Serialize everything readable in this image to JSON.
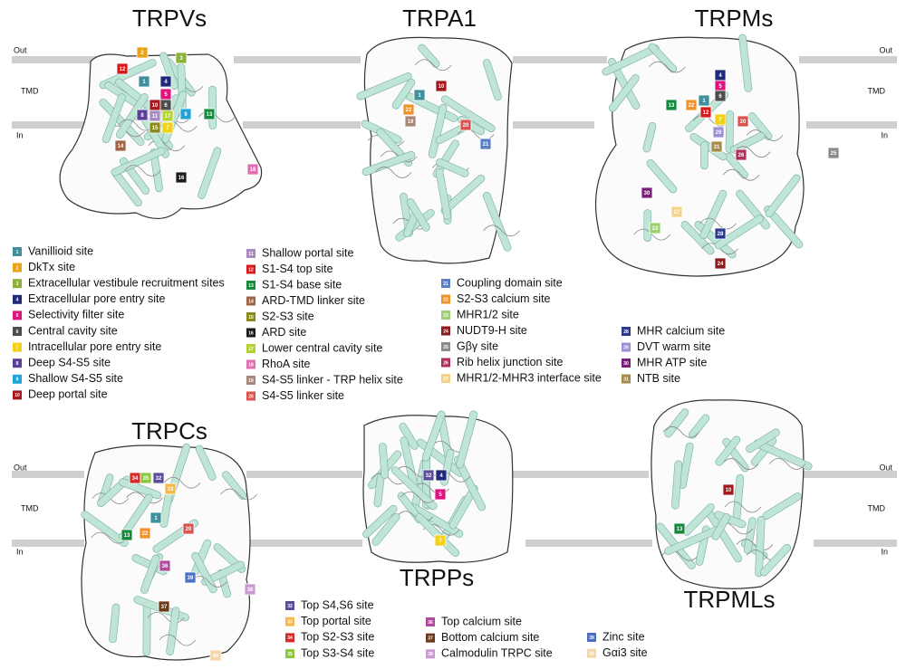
{
  "membrane_labels": [
    {
      "out": "Out",
      "tmd": "TMD",
      "in": "In"
    },
    {
      "out": "Out",
      "tmd": "TMD",
      "in": "In"
    },
    {
      "out": "Out",
      "tmd": "TMD",
      "in": "In"
    },
    {
      "out": "Out",
      "tmd": "TMD",
      "in": "In"
    }
  ],
  "panels": [
    {
      "title": "TRPVs",
      "sites": [
        "2",
        "3",
        "12",
        "1",
        "4",
        "5",
        "8",
        "10",
        "6",
        "11",
        "17",
        "9",
        "13",
        "15",
        "7",
        "14",
        "16",
        "18"
      ]
    },
    {
      "title": "TRPA1",
      "sites": [
        "1",
        "10",
        "22",
        "19",
        "20",
        "21"
      ]
    },
    {
      "title": "TRPMs",
      "sites": [
        "4",
        "5",
        "6",
        "1",
        "13",
        "22",
        "12",
        "7",
        "20",
        "29",
        "31",
        "26",
        "25",
        "30",
        "27",
        "23",
        "28",
        "24"
      ]
    },
    {
      "title": "TRPCs",
      "sites": [
        "34",
        "35",
        "32",
        "33",
        "1",
        "20",
        "13",
        "22",
        "36",
        "39",
        "38",
        "37",
        "40"
      ]
    },
    {
      "title": "TRPPs",
      "sites": [
        "32",
        "4",
        "5",
        "7"
      ]
    },
    {
      "title": "TRPMLs",
      "sites": [
        "10",
        "13"
      ]
    }
  ],
  "legend": [
    {
      "number": "1",
      "label": "Vanillioid site",
      "color": "#3f8f9c"
    },
    {
      "number": "2",
      "label": "DkTx site",
      "color": "#e8a317"
    },
    {
      "number": "3",
      "label": "Extracellular vestibule recruitment sites",
      "color": "#8db23c"
    },
    {
      "number": "4",
      "label": "Extracellular pore entry site",
      "color": "#1f2a7a"
    },
    {
      "number": "5",
      "label": "Selectivity filter site",
      "color": "#e0127f"
    },
    {
      "number": "6",
      "label": "Central cavity site",
      "color": "#4d4d4d"
    },
    {
      "number": "7",
      "label": "Intracellular pore entry site",
      "color": "#f2d116"
    },
    {
      "number": "8",
      "label": "Deep S4-S5 site",
      "color": "#5a3f9b"
    },
    {
      "number": "9",
      "label": "Shallow S4-S5 site",
      "color": "#1fa3d8"
    },
    {
      "number": "10",
      "label": "Deep portal site",
      "color": "#a3191d"
    },
    {
      "number": "11",
      "label": "Shallow portal site",
      "color": "#a98bc2"
    },
    {
      "number": "12",
      "label": "S1-S4 top site",
      "color": "#d7191c"
    },
    {
      "number": "13",
      "label": "S1-S4 base site",
      "color": "#168a3e"
    },
    {
      "number": "14",
      "label": "ARD-TMD linker site",
      "color": "#a0634a"
    },
    {
      "number": "15",
      "label": "S2-S3 site",
      "color": "#8a8a1a"
    },
    {
      "number": "16",
      "label": "ARD site",
      "color": "#1a1a1a"
    },
    {
      "number": "17",
      "label": "Lower central cavity site",
      "color": "#b3d334"
    },
    {
      "number": "18",
      "label": "RhoA site",
      "color": "#e06fb1"
    },
    {
      "number": "19",
      "label": "S4-S5 linker - TRP helix site",
      "color": "#a8877b"
    },
    {
      "number": "20",
      "label": "S4-S5 linker site",
      "color": "#d9534f"
    },
    {
      "number": "21",
      "label": "Coupling domain site",
      "color": "#5b7fc4"
    },
    {
      "number": "22",
      "label": "S2-S3 calcium site",
      "color": "#f0922b"
    },
    {
      "number": "23",
      "label": "MHR1/2 site",
      "color": "#9ccf6d"
    },
    {
      "number": "24",
      "label": "NUDT9-H site",
      "color": "#8b1a1a"
    },
    {
      "number": "25",
      "label": "Gβγ site",
      "color": "#8a8a8a"
    },
    {
      "number": "26",
      "label": "Rib helix junction site",
      "color": "#b0305a"
    },
    {
      "number": "27",
      "label": "MHR1/2-MHR3 interface site",
      "color": "#f5d28a"
    },
    {
      "number": "28",
      "label": "MHR calcium site",
      "color": "#2b3a8c"
    },
    {
      "number": "29",
      "label": "DVT warm site",
      "color": "#9b8fd6"
    },
    {
      "number": "30",
      "label": "MHR ATP site",
      "color": "#7a1f7a"
    },
    {
      "number": "31",
      "label": "NTB site",
      "color": "#a88a4a"
    },
    {
      "number": "32",
      "label": "Top S4,S6 site",
      "color": "#5b4b9b"
    },
    {
      "number": "33",
      "label": "Top portal site",
      "color": "#f7b84a"
    },
    {
      "number": "34",
      "label": "Top S2-S3 site",
      "color": "#d62a2a"
    },
    {
      "number": "35",
      "label": "Top S3-S4 site",
      "color": "#8cc63f"
    },
    {
      "number": "36",
      "label": "Top calcium site",
      "color": "#b04a9c"
    },
    {
      "number": "37",
      "label": "Bottom calcium site",
      "color": "#6b3a1a"
    },
    {
      "number": "38",
      "label": "Calmodulin TRPC site",
      "color": "#c99ad0"
    },
    {
      "number": "39",
      "label": "Zinc site",
      "color": "#4a6fc4"
    },
    {
      "number": "40",
      "label": "Gαi3 site",
      "color": "#f5d5a8"
    }
  ]
}
